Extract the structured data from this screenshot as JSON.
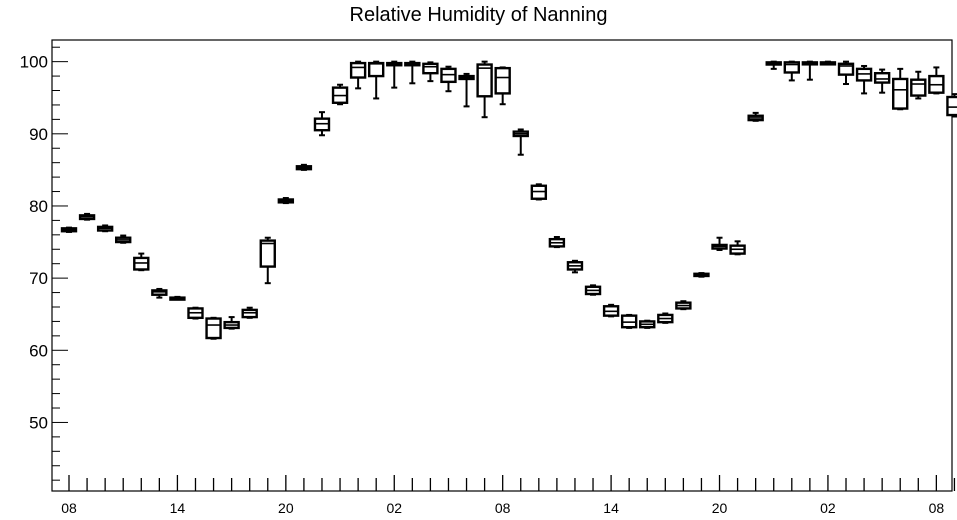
{
  "chart_data": {
    "type": "boxplot",
    "title": "Relative Humidity of Nanning",
    "xlabel": "",
    "ylabel": "",
    "ylim": [
      40.5,
      103
    ],
    "y_ticks": [
      50,
      60,
      70,
      80,
      90,
      100
    ],
    "x_ticks": [
      {
        "hour_index": 0,
        "label": "08"
      },
      {
        "hour_index": 6,
        "label": "14"
      },
      {
        "hour_index": 12,
        "label": "20"
      },
      {
        "hour_index": 18,
        "label": "02"
      },
      {
        "hour_index": 24,
        "label": "08"
      },
      {
        "hour_index": 30,
        "label": "14"
      },
      {
        "hour_index": 36,
        "label": "20"
      },
      {
        "hour_index": 42,
        "label": "02"
      },
      {
        "hour_index": 48,
        "label": "08"
      }
    ],
    "grid": false,
    "boxes": [
      {
        "hour_index": 0,
        "min": 76.4,
        "q1": 76.5,
        "median": 76.7,
        "q3": 76.9,
        "max": 77.0
      },
      {
        "hour_index": 1,
        "min": 78.1,
        "q1": 78.2,
        "median": 78.5,
        "q3": 78.7,
        "max": 78.9
      },
      {
        "hour_index": 2,
        "min": 76.5,
        "q1": 76.6,
        "median": 76.9,
        "q3": 77.1,
        "max": 77.3
      },
      {
        "hour_index": 3,
        "min": 74.9,
        "q1": 75.0,
        "median": 75.3,
        "q3": 75.6,
        "max": 75.9
      },
      {
        "hour_index": 4,
        "min": 71.1,
        "q1": 71.2,
        "median": 72.1,
        "q3": 72.8,
        "max": 73.4
      },
      {
        "hour_index": 5,
        "min": 67.3,
        "q1": 67.7,
        "median": 68.1,
        "q3": 68.3,
        "max": 68.5
      },
      {
        "hour_index": 6,
        "min": 67.3,
        "q1": 67.3,
        "median": 67.3,
        "q3": 67.3,
        "max": 67.4
      },
      {
        "hour_index": 7,
        "min": 64.4,
        "q1": 64.5,
        "median": 65.2,
        "q3": 65.8,
        "max": 65.9
      },
      {
        "hour_index": 8,
        "min": 61.6,
        "q1": 61.7,
        "median": 63.5,
        "q3": 64.4,
        "max": 64.5
      },
      {
        "hour_index": 9,
        "min": 63.0,
        "q1": 63.1,
        "median": 63.5,
        "q3": 63.9,
        "max": 64.6
      },
      {
        "hour_index": 10,
        "min": 64.5,
        "q1": 64.6,
        "median": 65.2,
        "q3": 65.6,
        "max": 65.9
      },
      {
        "hour_index": 11,
        "min": 69.3,
        "q1": 71.6,
        "median": 74.8,
        "q3": 75.2,
        "max": 75.6
      },
      {
        "hour_index": 12,
        "min": 80.4,
        "q1": 80.5,
        "median": 80.7,
        "q3": 80.9,
        "max": 81.1
      },
      {
        "hour_index": 13,
        "min": 85.0,
        "q1": 85.1,
        "median": 85.3,
        "q3": 85.5,
        "max": 85.7
      },
      {
        "hour_index": 14,
        "min": 89.8,
        "q1": 90.5,
        "median": 91.4,
        "q3": 92.1,
        "max": 93.0
      },
      {
        "hour_index": 15,
        "min": 94.1,
        "q1": 94.3,
        "median": 95.3,
        "q3": 96.4,
        "max": 96.8
      },
      {
        "hour_index": 16,
        "min": 96.3,
        "q1": 97.8,
        "median": 99.2,
        "q3": 99.8,
        "max": 100.0
      },
      {
        "hour_index": 17,
        "min": 94.9,
        "q1": 98.0,
        "median": 99.7,
        "q3": 99.8,
        "max": 100.0
      },
      {
        "hour_index": 18,
        "min": 96.4,
        "q1": 99.5,
        "median": 99.7,
        "q3": 99.8,
        "max": 100.0
      },
      {
        "hour_index": 19,
        "min": 97.0,
        "q1": 99.5,
        "median": 99.7,
        "q3": 99.8,
        "max": 100.0
      },
      {
        "hour_index": 20,
        "min": 97.3,
        "q1": 98.4,
        "median": 99.3,
        "q3": 99.7,
        "max": 99.9
      },
      {
        "hour_index": 21,
        "min": 95.9,
        "q1": 97.2,
        "median": 98.2,
        "q3": 99.0,
        "max": 99.3
      },
      {
        "hour_index": 22,
        "min": 93.8,
        "q1": 97.6,
        "median": 97.8,
        "q3": 98.0,
        "max": 98.3
      },
      {
        "hour_index": 23,
        "min": 92.3,
        "q1": 95.2,
        "median": 99.1,
        "q3": 99.6,
        "max": 100.0
      },
      {
        "hour_index": 24,
        "min": 94.1,
        "q1": 95.6,
        "median": 97.8,
        "q3": 99.1,
        "max": 99.2
      },
      {
        "hour_index": 25,
        "min": 87.1,
        "q1": 89.7,
        "median": 90.0,
        "q3": 90.3,
        "max": 90.6
      },
      {
        "hour_index": 26,
        "min": 80.9,
        "q1": 81.0,
        "median": 82.0,
        "q3": 82.8,
        "max": 83.0
      },
      {
        "hour_index": 27,
        "min": 74.3,
        "q1": 74.4,
        "median": 74.9,
        "q3": 75.4,
        "max": 75.7
      },
      {
        "hour_index": 28,
        "min": 70.8,
        "q1": 71.2,
        "median": 71.7,
        "q3": 72.2,
        "max": 72.4
      },
      {
        "hour_index": 29,
        "min": 67.7,
        "q1": 67.8,
        "median": 68.3,
        "q3": 68.8,
        "max": 69.0
      },
      {
        "hour_index": 30,
        "min": 64.7,
        "q1": 64.8,
        "median": 65.4,
        "q3": 66.1,
        "max": 66.3
      },
      {
        "hour_index": 31,
        "min": 63.1,
        "q1": 63.2,
        "median": 63.9,
        "q3": 64.8,
        "max": 64.9
      },
      {
        "hour_index": 32,
        "min": 63.1,
        "q1": 63.2,
        "median": 63.6,
        "q3": 64.0,
        "max": 64.1
      },
      {
        "hour_index": 33,
        "min": 63.8,
        "q1": 63.9,
        "median": 64.4,
        "q3": 64.9,
        "max": 65.1
      },
      {
        "hour_index": 34,
        "min": 65.7,
        "q1": 65.8,
        "median": 66.2,
        "q3": 66.6,
        "max": 66.8
      },
      {
        "hour_index": 35,
        "min": 70.2,
        "q1": 70.3,
        "median": 70.5,
        "q3": 70.6,
        "max": 70.7
      },
      {
        "hour_index": 36,
        "min": 73.9,
        "q1": 74.1,
        "median": 74.4,
        "q3": 74.6,
        "max": 75.6
      },
      {
        "hour_index": 37,
        "min": 73.3,
        "q1": 73.4,
        "median": 74.0,
        "q3": 74.5,
        "max": 75.1
      },
      {
        "hour_index": 38,
        "min": 91.8,
        "q1": 91.9,
        "median": 92.2,
        "q3": 92.5,
        "max": 92.9
      },
      {
        "hour_index": 39,
        "min": 99.0,
        "q1": 99.6,
        "median": 99.8,
        "q3": 99.9,
        "max": 100.0
      },
      {
        "hour_index": 40,
        "min": 97.4,
        "q1": 98.5,
        "median": 99.6,
        "q3": 99.9,
        "max": 100.0
      },
      {
        "hour_index": 41,
        "min": 97.5,
        "q1": 99.8,
        "median": 99.9,
        "q3": 99.9,
        "max": 100.0
      },
      {
        "hour_index": 42,
        "min": 99.8,
        "q1": 99.8,
        "median": 99.9,
        "q3": 99.9,
        "max": 100.0
      },
      {
        "hour_index": 43,
        "min": 96.9,
        "q1": 98.2,
        "median": 99.4,
        "q3": 99.7,
        "max": 100.0
      },
      {
        "hour_index": 44,
        "min": 95.6,
        "q1": 97.4,
        "median": 98.3,
        "q3": 99.0,
        "max": 99.4
      },
      {
        "hour_index": 45,
        "min": 95.7,
        "q1": 97.1,
        "median": 97.6,
        "q3": 98.4,
        "max": 98.9
      },
      {
        "hour_index": 46,
        "min": 93.4,
        "q1": 93.5,
        "median": 96.1,
        "q3": 97.6,
        "max": 99.0
      },
      {
        "hour_index": 47,
        "min": 94.9,
        "q1": 95.3,
        "median": 96.9,
        "q3": 97.5,
        "max": 98.6
      },
      {
        "hour_index": 48,
        "min": 95.6,
        "q1": 95.7,
        "median": 96.8,
        "q3": 98.0,
        "max": 99.2
      },
      {
        "hour_index": 49,
        "min": 92.4,
        "q1": 92.6,
        "median": 93.7,
        "q3": 95.1,
        "max": 95.5
      }
    ]
  }
}
